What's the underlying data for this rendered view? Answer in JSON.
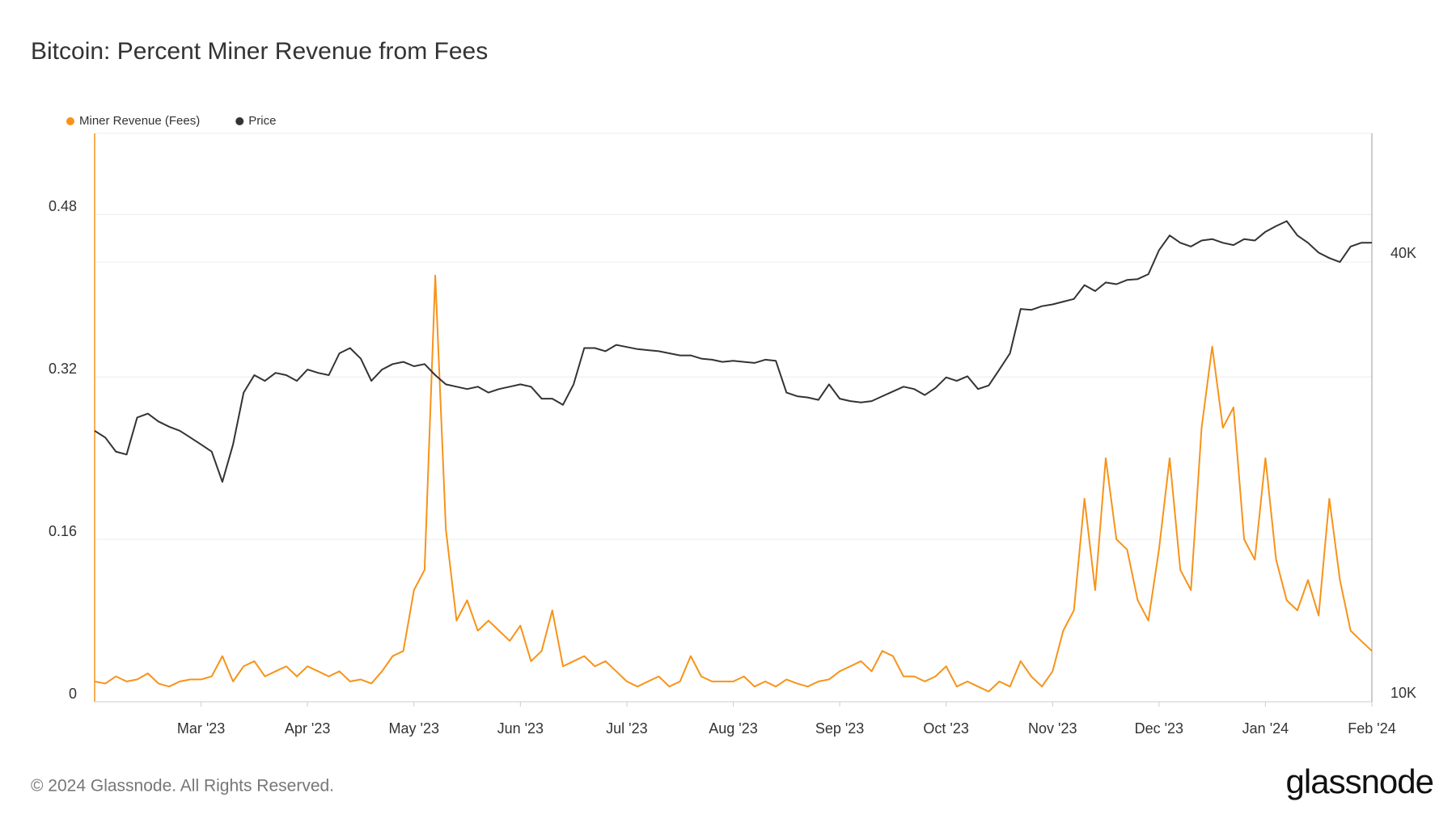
{
  "chart_data": {
    "type": "line",
    "title": "Bitcoin: Percent Miner Revenue from Fees",
    "footer": "© 2024 Glassnode. All Rights Reserved.",
    "brand": "glassnode",
    "categories": [
      null,
      null,
      null,
      null,
      null,
      null,
      null,
      null,
      null,
      null,
      "Mar '23",
      null,
      null,
      null,
      null,
      null,
      null,
      null,
      null,
      null,
      "Apr '23",
      null,
      null,
      null,
      null,
      null,
      null,
      null,
      null,
      null,
      "May '23",
      null,
      null,
      null,
      null,
      null,
      null,
      null,
      null,
      null,
      "Jun '23",
      null,
      null,
      null,
      null,
      null,
      null,
      null,
      null,
      null,
      "Jul '23",
      null,
      null,
      null,
      null,
      null,
      null,
      null,
      null,
      null,
      "Aug '23",
      null,
      null,
      null,
      null,
      null,
      null,
      null,
      null,
      null,
      "Sep '23",
      null,
      null,
      null,
      null,
      null,
      null,
      null,
      null,
      null,
      "Oct '23",
      null,
      null,
      null,
      null,
      null,
      null,
      null,
      null,
      null,
      "Nov '23",
      null,
      null,
      null,
      null,
      null,
      null,
      null,
      null,
      null,
      "Dec '23",
      null,
      null,
      null,
      null,
      null,
      null,
      null,
      null,
      null,
      "Jan '24",
      null,
      null,
      null,
      null,
      null,
      null,
      null,
      null,
      null,
      "Feb '24"
    ],
    "series": [
      {
        "name": "Miner Revenue (Fees)",
        "color": "#f7931a",
        "axis": "y",
        "values": [
          0.02,
          0.018,
          0.025,
          0.02,
          0.022,
          0.028,
          0.018,
          0.015,
          0.02,
          0.022,
          0.022,
          0.025,
          0.045,
          0.02,
          0.035,
          0.04,
          0.025,
          0.03,
          0.035,
          0.025,
          0.035,
          0.03,
          0.025,
          0.03,
          0.02,
          0.022,
          0.018,
          0.03,
          0.045,
          0.05,
          0.11,
          0.13,
          0.42,
          0.17,
          0.08,
          0.1,
          0.07,
          0.08,
          0.07,
          0.06,
          0.075,
          0.04,
          0.05,
          0.09,
          0.035,
          0.04,
          0.045,
          0.035,
          0.04,
          0.03,
          0.02,
          0.015,
          0.02,
          0.025,
          0.015,
          0.02,
          0.045,
          0.025,
          0.02,
          0.02,
          0.02,
          0.025,
          0.015,
          0.02,
          0.015,
          0.022,
          0.018,
          0.015,
          0.02,
          0.022,
          0.03,
          0.035,
          0.04,
          0.03,
          0.05,
          0.045,
          0.025,
          0.025,
          0.02,
          0.025,
          0.035,
          0.015,
          0.02,
          0.015,
          0.01,
          0.02,
          0.015,
          0.04,
          0.025,
          0.015,
          0.03,
          0.07,
          0.09,
          0.2,
          0.11,
          0.24,
          0.16,
          0.15,
          0.1,
          0.08,
          0.15,
          0.24,
          0.13,
          0.11,
          0.27,
          0.35,
          0.27,
          0.29,
          0.16,
          0.14,
          0.24,
          0.14,
          0.1,
          0.09,
          0.12,
          0.085,
          0.2,
          0.12,
          0.07,
          0.06,
          0.05
        ]
      },
      {
        "name": "Price",
        "color": "#333333",
        "axis": "y2",
        "values": [
          23500,
          23000,
          22000,
          21800,
          24500,
          24800,
          24200,
          23800,
          23500,
          23000,
          22500,
          22000,
          20000,
          22500,
          26500,
          28000,
          27500,
          28200,
          28000,
          27500,
          28500,
          28200,
          28000,
          30000,
          30500,
          29500,
          27500,
          28500,
          29000,
          29200,
          28800,
          29000,
          28000,
          27200,
          27000,
          26800,
          27000,
          26500,
          26800,
          27000,
          27200,
          27000,
          26000,
          26000,
          25500,
          27200,
          30500,
          30500,
          30200,
          30800,
          30600,
          30400,
          30300,
          30200,
          30000,
          29800,
          29800,
          29500,
          29400,
          29200,
          29300,
          29200,
          29100,
          29400,
          29300,
          26500,
          26200,
          26100,
          25900,
          27200,
          26000,
          25800,
          25700,
          25800,
          26200,
          26600,
          27000,
          26800,
          26300,
          26900,
          27800,
          27500,
          27900,
          26800,
          27100,
          28500,
          30000,
          34500,
          34400,
          34800,
          35000,
          35300,
          35600,
          37200,
          36500,
          37500,
          37300,
          37800,
          37900,
          38500,
          41500,
          43500,
          42500,
          42000,
          42800,
          43000,
          42500,
          42200,
          43000,
          42800,
          44000,
          44800,
          45500,
          43500,
          42500,
          41200,
          40500,
          40000,
          42000,
          42500,
          42500
        ]
      }
    ],
    "ylim": [
      0,
      0.56
    ],
    "yticks": [
      0,
      0.16,
      0.32,
      0.48
    ],
    "y2lim": [
      10000,
      60000
    ],
    "y2log": true,
    "y2ticks": [
      {
        "value": 10000,
        "label": "10K"
      },
      {
        "value": 40000,
        "label": "40K"
      }
    ],
    "grid": true,
    "legend": "top-left"
  }
}
